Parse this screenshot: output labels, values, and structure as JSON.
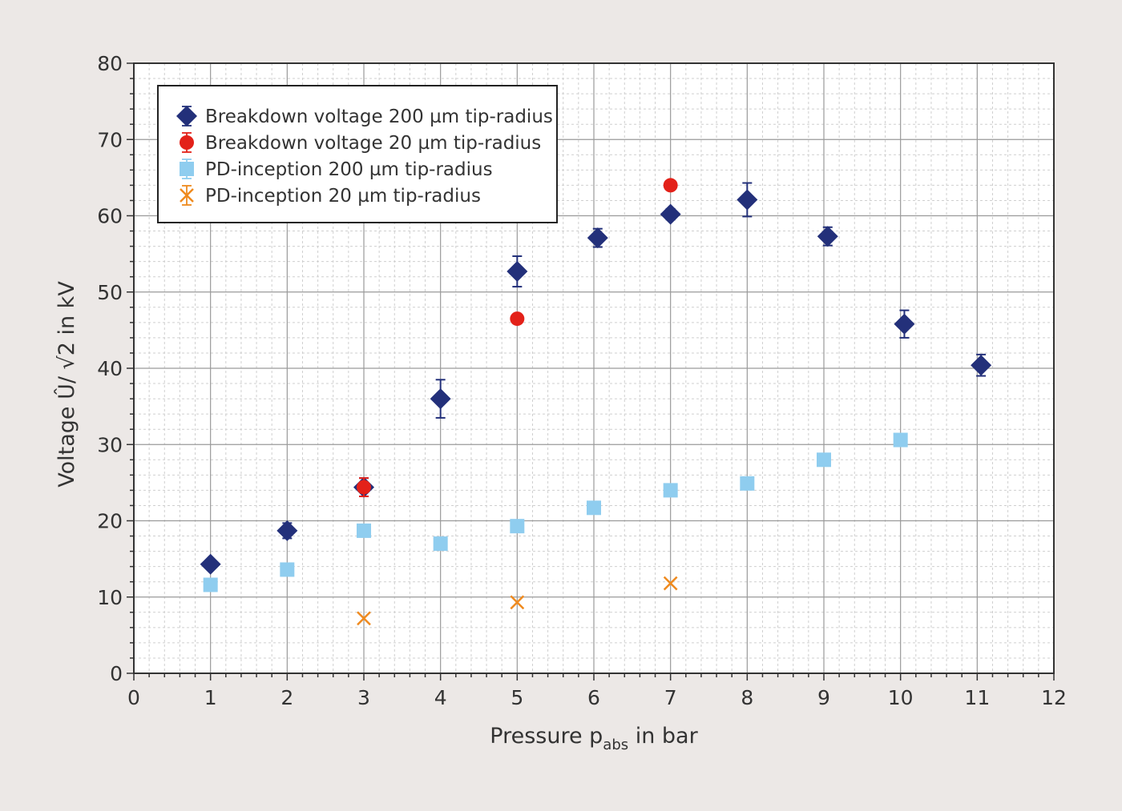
{
  "chart_data": {
    "type": "scatter",
    "xlabel": {
      "main": "Pressure p",
      "sub": "abs",
      "suffix": " in bar"
    },
    "ylabel": "Voltage Û/ √2 in kV",
    "xlim": [
      0,
      12
    ],
    "ylim": [
      0,
      80
    ],
    "x_ticks": [
      0,
      1,
      2,
      3,
      4,
      5,
      6,
      7,
      8,
      9,
      10,
      11,
      12
    ],
    "y_ticks": [
      0,
      10,
      20,
      30,
      40,
      50,
      60,
      70,
      80
    ],
    "grid": {
      "major": true,
      "minor": true
    },
    "legend_position": "top-left",
    "series": [
      {
        "name": "Breakdown voltage 200 µm tip-radius",
        "marker": "diamond",
        "color": "#23307a",
        "points": [
          {
            "x": 1,
            "y": 14.3,
            "err": 0.6
          },
          {
            "x": 2,
            "y": 18.7,
            "err": 1.0
          },
          {
            "x": 3,
            "y": 24.4,
            "err": 1.2
          },
          {
            "x": 4,
            "y": 36.0,
            "err": 2.5
          },
          {
            "x": 5,
            "y": 52.7,
            "err": 2.0
          },
          {
            "x": 6.05,
            "y": 57.1,
            "err": 1.2
          },
          {
            "x": 7,
            "y": 60.2,
            "err": 0.7
          },
          {
            "x": 8,
            "y": 62.1,
            "err": 2.2
          },
          {
            "x": 9.05,
            "y": 57.3,
            "err": 1.2
          },
          {
            "x": 10.05,
            "y": 45.8,
            "err": 1.8
          },
          {
            "x": 11.05,
            "y": 40.4,
            "err": 1.4
          }
        ]
      },
      {
        "name": "Breakdown voltage 20 µm tip-radius",
        "marker": "circle",
        "color": "#e32119",
        "points": [
          {
            "x": 3,
            "y": 24.4,
            "err": 1.2
          },
          {
            "x": 5,
            "y": 46.5,
            "err": 0
          },
          {
            "x": 7,
            "y": 64.0,
            "err": 0
          }
        ]
      },
      {
        "name": "PD-inception 200 µm tip-radius",
        "marker": "square",
        "color": "#8fcdef",
        "points": [
          {
            "x": 1,
            "y": 11.6,
            "err": 0
          },
          {
            "x": 2,
            "y": 13.6,
            "err": 0
          },
          {
            "x": 3,
            "y": 18.7,
            "err": 0
          },
          {
            "x": 4,
            "y": 17.0,
            "err": 0
          },
          {
            "x": 5,
            "y": 19.3,
            "err": 0
          },
          {
            "x": 6,
            "y": 21.7,
            "err": 0
          },
          {
            "x": 7,
            "y": 24.0,
            "err": 0
          },
          {
            "x": 8,
            "y": 24.9,
            "err": 0.8
          },
          {
            "x": 9,
            "y": 28.0,
            "err": 0.8
          },
          {
            "x": 10,
            "y": 30.6,
            "err": 0
          }
        ]
      },
      {
        "name": "PD-inception 20 µm tip-radius",
        "marker": "x",
        "color": "#ef8a1e",
        "points": [
          {
            "x": 3,
            "y": 7.2,
            "err": 0
          },
          {
            "x": 5,
            "y": 9.3,
            "err": 0
          },
          {
            "x": 7,
            "y": 11.8,
            "err": 0
          }
        ]
      }
    ]
  }
}
